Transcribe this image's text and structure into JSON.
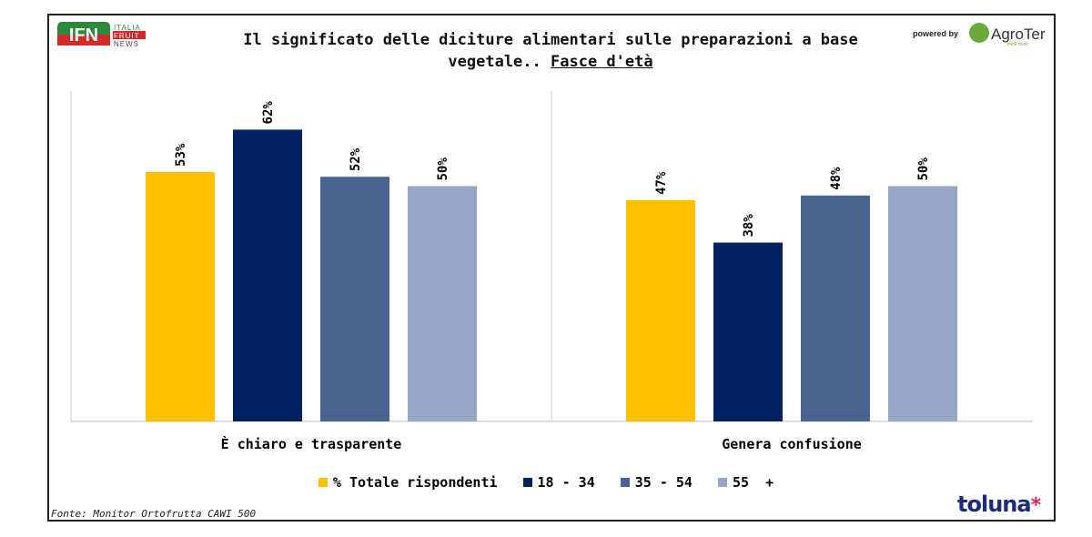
{
  "title_line1": "Il significato delle diciture alimentari sulle preparazioni a base",
  "title_line2": "vegetale.. ",
  "title_underlined": "Fasce d'età",
  "source": "Fonte: Monitor Ortofrutta CAWI 500",
  "logos": {
    "ifn": "IFN ITALIA FRUIT NEWS",
    "powered_by": "powered by",
    "agroter": "AgroTer think fresh",
    "toluna": "toluna"
  },
  "chart_data": {
    "type": "bar",
    "categories": [
      "È chiaro e trasparente",
      "Genera confusione"
    ],
    "series": [
      {
        "name": "% Totale rispondenti",
        "color": "#FFC000",
        "values": [
          53,
          47
        ]
      },
      {
        "name": "18 - 34",
        "color": "#002060",
        "values": [
          62,
          38
        ]
      },
      {
        "name": "35 - 54",
        "color": "#4A6490",
        "values": [
          52,
          48
        ]
      },
      {
        "name": "55  +",
        "color": "#97A6C4",
        "values": [
          50,
          50
        ]
      }
    ],
    "data_label_format": "{v}%",
    "ylim": [
      0,
      70
    ],
    "grid": false,
    "legend_position": "bottom"
  }
}
